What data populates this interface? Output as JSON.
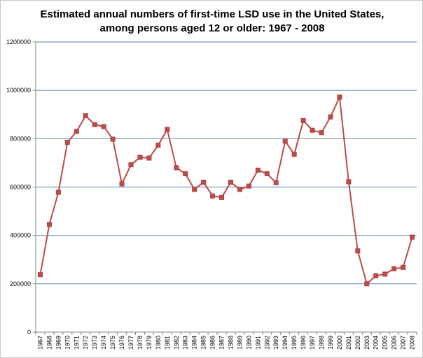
{
  "chart_data": {
    "type": "line",
    "title_line1": "Estimated annual numbers of first-time LSD use in the United States,",
    "title_line2": "among persons aged 12 or older: 1967 - 2008",
    "xlabel": "",
    "ylabel": "",
    "ylim": [
      0,
      1200000
    ],
    "y_ticks": [
      "0",
      "200000",
      "400000",
      "600000",
      "800000",
      "1000000",
      "1200000"
    ],
    "grid": "horizontal",
    "legend": "none",
    "color": "#be4b48",
    "categories": [
      "1967",
      "1968",
      "1969",
      "1970",
      "1971",
      "1972",
      "1973",
      "1974",
      "1975",
      "1976",
      "1977",
      "1978",
      "1979",
      "1980",
      "1981",
      "1982",
      "1983",
      "1984",
      "1985",
      "1986",
      "1987",
      "1988",
      "1989",
      "1990",
      "1991",
      "1992",
      "1993",
      "1994",
      "1995",
      "1996",
      "1997",
      "1998",
      "1999",
      "2000",
      "2001",
      "2002",
      "2003",
      "2004",
      "2005",
      "2006",
      "2007",
      "2008"
    ],
    "values": [
      238000,
      445000,
      578000,
      785000,
      830000,
      895000,
      858000,
      850000,
      798000,
      613000,
      692000,
      723000,
      720000,
      773000,
      838000,
      680000,
      655000,
      590000,
      620000,
      563000,
      557000,
      620000,
      590000,
      604000,
      670000,
      655000,
      618000,
      790000,
      735000,
      875000,
      835000,
      825000,
      890000,
      972000,
      622000,
      336000,
      200000,
      233000,
      240000,
      262000,
      268000,
      393000
    ]
  }
}
